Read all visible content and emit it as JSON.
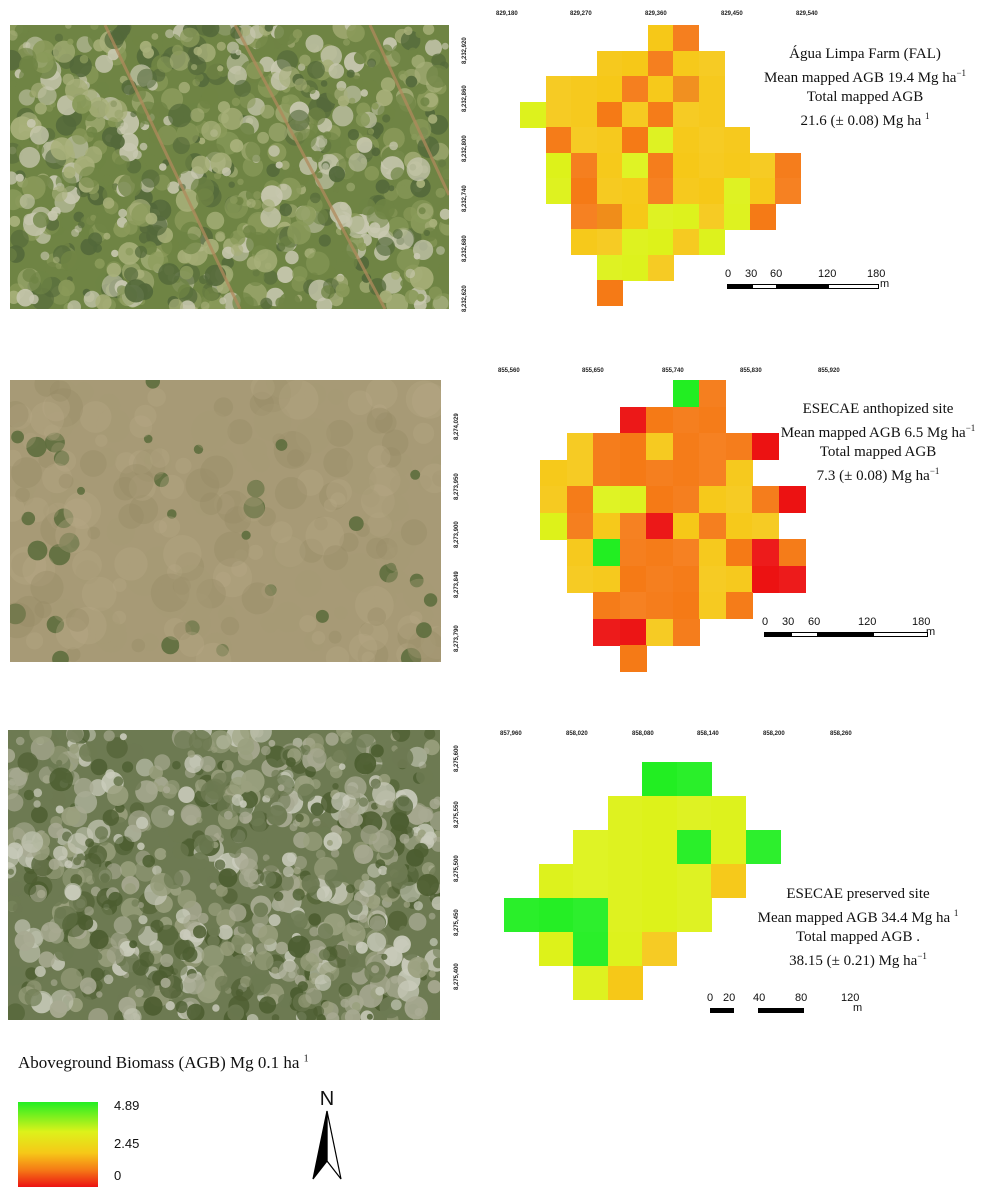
{
  "panels": [
    {
      "id": "fal",
      "photo_colors": [
        "#6f8444",
        "#8a9a5a",
        "#a8b07a",
        "#53683a",
        "#c8c8b0"
      ],
      "x_coords": [
        "829,180",
        "829,270",
        "829,360",
        "829,450",
        "829,540"
      ],
      "y_coords": [
        "8,232,920",
        "8,232,860",
        "8,232,800",
        "8,232,740",
        "8,232,680",
        "8,232,620"
      ],
      "title_line1": "Água Limpa Farm (FAL)",
      "mean_prefix": "Mean mapped AGB 19.4 Mg ha",
      "mean_sup": "−1",
      "total_line": "Total mapped AGB",
      "total_value_prefix": "21.6 (± 0.08) Mg ha",
      "total_value_sup": "1",
      "scale_labels": [
        "0",
        "30",
        "60",
        "120",
        "180"
      ],
      "scale_unit": "m"
    },
    {
      "id": "esecae-anthropized",
      "photo_colors": [
        "#a79a76",
        "#b6a886",
        "#958a64",
        "#5e6e3e",
        "#c4b897"
      ],
      "x_coords": [
        "855,560",
        "855,650",
        "855,740",
        "855,830",
        "855,920"
      ],
      "y_coords": [
        "8,274,029",
        "8,273,950",
        "8,273,900",
        "8,273,849",
        "8,273,790"
      ],
      "title_line1": "ESECAE anthopized site",
      "mean_prefix": "Mean mapped AGB 6.5 Mg ha",
      "mean_sup": "−1",
      "total_line": "Total mapped AGB",
      "total_value_prefix": "7.3 (± 0.08) Mg ha",
      "total_value_sup": "−1",
      "scale_labels": [
        "0",
        "30",
        "60",
        "120",
        "180"
      ],
      "scale_unit": "m"
    },
    {
      "id": "esecae-preserved",
      "photo_colors": [
        "#6d7a52",
        "#9aa07e",
        "#c9cbbb",
        "#4c5d30",
        "#a8aa92"
      ],
      "x_coords": [
        "857,960",
        "858,020",
        "858,080",
        "858,140",
        "858,200",
        "858,260"
      ],
      "y_coords": [
        "8,275,600",
        "8,275,550",
        "8,275,500",
        "8,275,450",
        "8,275,400"
      ],
      "title_line1": "ESECAE preserved site",
      "mean_prefix": "Mean mapped AGB 34.4 Mg ha",
      "mean_sup": "1",
      "total_line": "Total mapped AGB .",
      "total_value_prefix": "38.15 (± 0.21) Mg ha",
      "total_value_sup": "−1",
      "scale_labels": [
        "0",
        "20",
        "40",
        "80",
        "120"
      ],
      "scale_unit": "m"
    }
  ],
  "legend": {
    "title_prefix": "Aboveground Biomass (AGB) Mg 0.1 ha",
    "title_sup": "1",
    "max_label": "4.89",
    "mid_label": "2.45",
    "min_label": "0",
    "ramp_colors": [
      "#22ee22",
      "#ddf21a",
      "#f6c818",
      "#f57a16",
      "#ec1212"
    ]
  },
  "north_arrow_label": "N"
}
